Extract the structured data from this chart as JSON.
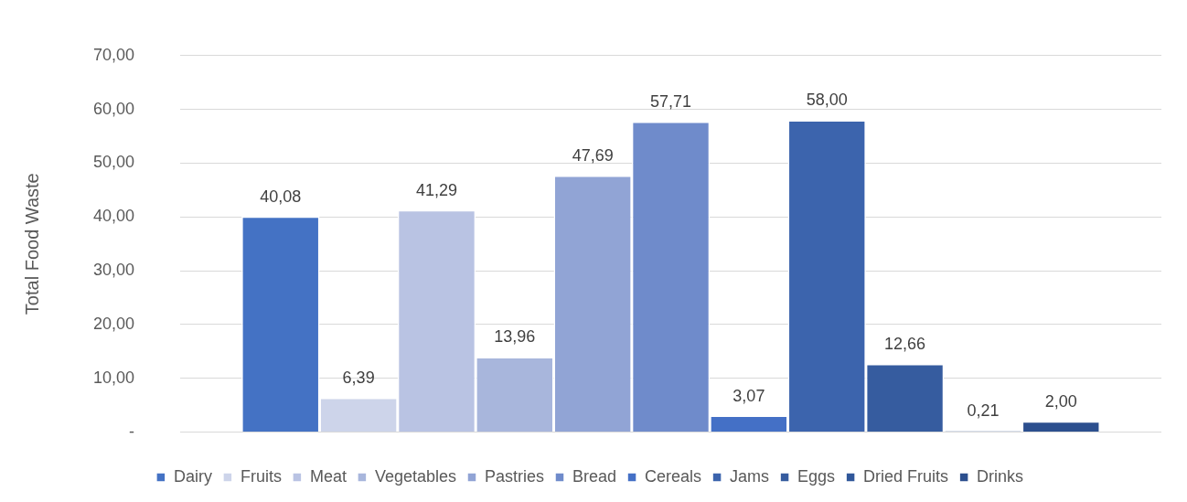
{
  "chart_data": {
    "type": "bar",
    "ylabel": "Total Food Waste",
    "categories": [
      null
    ],
    "ylim": [
      0,
      70
    ],
    "yticks": [
      {
        "value": 0,
        "label": "-"
      },
      {
        "value": 10,
        "label": "10,00"
      },
      {
        "value": 20,
        "label": "20,00"
      },
      {
        "value": 30,
        "label": "30,00"
      },
      {
        "value": 40,
        "label": "40,00"
      },
      {
        "value": 50,
        "label": "50,00"
      },
      {
        "value": 60,
        "label": "60,00"
      },
      {
        "value": 70,
        "label": "70,00"
      }
    ],
    "grid": "y",
    "legend": "bottom",
    "series": [
      {
        "name": "Dairy",
        "color": "#4472c4",
        "values": [
          40.08
        ],
        "value_labels": [
          "40,08"
        ]
      },
      {
        "name": "Fruits",
        "color": "#cdd4ea",
        "values": [
          6.39
        ],
        "value_labels": [
          "6,39"
        ]
      },
      {
        "name": "Meat",
        "color": "#b9c3e3",
        "values": [
          41.29
        ],
        "value_labels": [
          "41,29"
        ]
      },
      {
        "name": "Vegetables",
        "color": "#a8b6dc",
        "values": [
          13.96
        ],
        "value_labels": [
          "13,96"
        ]
      },
      {
        "name": "Pastries",
        "color": "#91a4d5",
        "values": [
          47.69
        ],
        "value_labels": [
          "47,69"
        ]
      },
      {
        "name": "Bread",
        "color": "#6f8bcb",
        "values": [
          57.71
        ],
        "value_labels": [
          "57,71"
        ]
      },
      {
        "name": "Cereals",
        "color": "#4470c6",
        "values": [
          3.07
        ],
        "value_labels": [
          "3,07"
        ]
      },
      {
        "name": "Jams",
        "color": "#3c64ad",
        "values": [
          58.0
        ],
        "value_labels": [
          "58,00"
        ]
      },
      {
        "name": "Eggs",
        "color": "#365c9f",
        "values": [
          12.66
        ],
        "value_labels": [
          "12,66"
        ]
      },
      {
        "name": "Dried Fruits",
        "color": "#30579a",
        "values": [
          0.21
        ],
        "value_labels": [
          "0,21"
        ]
      },
      {
        "name": "Drinks",
        "color": "#2c4f8e",
        "values": [
          2.0
        ],
        "value_labels": [
          "2,00"
        ]
      }
    ]
  }
}
